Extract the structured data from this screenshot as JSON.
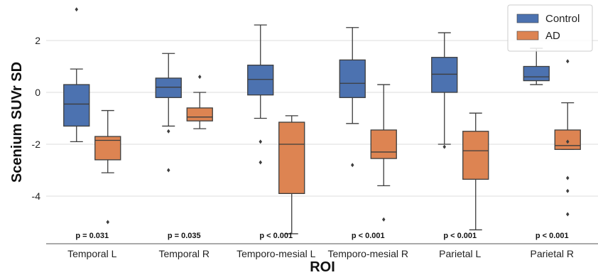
{
  "chart_data": {
    "type": "box",
    "xlabel": "ROI",
    "ylabel": "Scenium SUVr SD",
    "ylim": [
      -5.8,
      3.3
    ],
    "yticks": [
      -4,
      -2,
      0,
      2
    ],
    "grid": "horizontal",
    "legend_position": "top-right",
    "categories": [
      "Temporal L",
      "Temporal R",
      "Temporo-mesial L",
      "Temporo-mesial R",
      "Parietal L",
      "Parietal R"
    ],
    "p_values": [
      "p = 0.031",
      "p = 0.035",
      "p < 0.001",
      "p < 0.001",
      "p < 0.001",
      "p < 0.001"
    ],
    "series": [
      {
        "name": "Control",
        "color": "#4c72b0",
        "boxes": [
          {
            "whislo": -1.9,
            "q1": -1.3,
            "med": -0.45,
            "q3": 0.3,
            "whishi": 0.9,
            "fliers": [
              3.2
            ]
          },
          {
            "whislo": -1.3,
            "q1": -0.2,
            "med": 0.2,
            "q3": 0.55,
            "whishi": 1.5,
            "fliers": [
              -1.5,
              -3.0
            ]
          },
          {
            "whislo": -1.0,
            "q1": -0.1,
            "med": 0.5,
            "q3": 1.05,
            "whishi": 2.6,
            "fliers": [
              -1.9,
              -2.7
            ]
          },
          {
            "whislo": -1.2,
            "q1": -0.2,
            "med": 0.35,
            "q3": 1.25,
            "whishi": 2.5,
            "fliers": [
              -2.8
            ]
          },
          {
            "whislo": -2.0,
            "q1": 0.0,
            "med": 0.7,
            "q3": 1.35,
            "whishi": 2.3,
            "fliers": [
              -2.1
            ]
          },
          {
            "whislo": 0.3,
            "q1": 0.45,
            "med": 0.6,
            "q3": 1.0,
            "whishi": 1.7,
            "fliers": []
          }
        ]
      },
      {
        "name": "AD",
        "color": "#dd8452",
        "boxes": [
          {
            "whislo": -3.1,
            "q1": -2.6,
            "med": -1.85,
            "q3": -1.7,
            "whishi": -0.7,
            "fliers": [
              -5.0
            ]
          },
          {
            "whislo": -1.4,
            "q1": -1.1,
            "med": -0.95,
            "q3": -0.6,
            "whishi": 0.0,
            "fliers": [
              0.6
            ]
          },
          {
            "whislo": -5.45,
            "q1": -3.9,
            "med": -2.0,
            "q3": -1.15,
            "whishi": -0.9,
            "fliers": []
          },
          {
            "whislo": -3.6,
            "q1": -2.55,
            "med": -2.3,
            "q3": -1.45,
            "whishi": 0.3,
            "fliers": [
              -4.9
            ]
          },
          {
            "whislo": -5.3,
            "q1": -3.35,
            "med": -2.25,
            "q3": -1.5,
            "whishi": -0.8,
            "fliers": []
          },
          {
            "whislo": -2.2,
            "q1": -2.2,
            "med": -2.05,
            "q3": -1.45,
            "whishi": -0.4,
            "fliers": [
              1.2,
              -1.9,
              -3.3,
              -3.8,
              -4.7
            ]
          }
        ]
      }
    ]
  }
}
